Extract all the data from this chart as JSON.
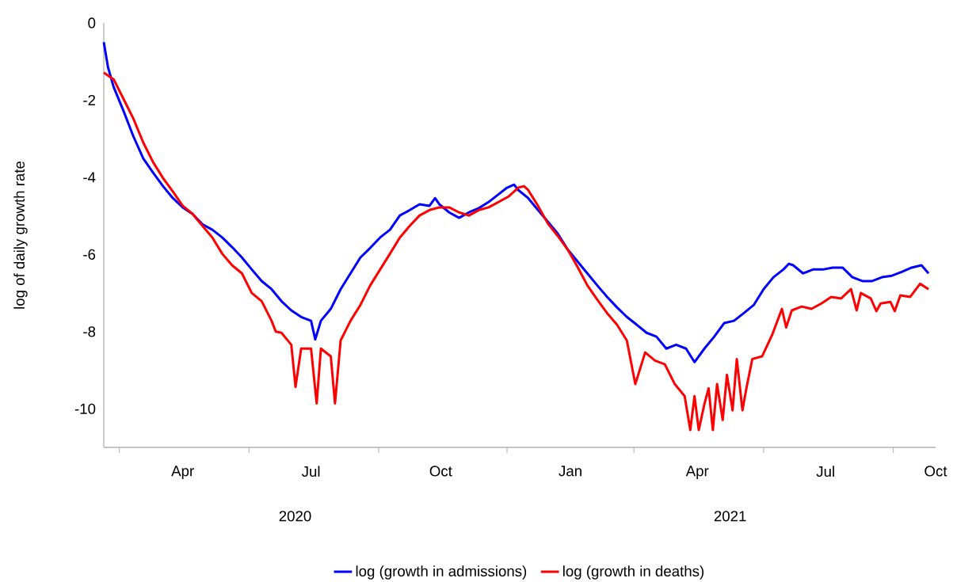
{
  "chart_data": {
    "type": "line",
    "ylabel": "log of daily growth rate",
    "xlim": [
      "2020-02-19",
      "2021-10-01"
    ],
    "xticks": [
      {
        "value": "2020-03-01",
        "label": null
      },
      {
        "value": "2020-04-15",
        "label": "Apr"
      },
      {
        "value": "2020-06-01",
        "label": null
      },
      {
        "value": "2020-07-15",
        "label": "Jul"
      },
      {
        "value": "2020-09-01",
        "label": null
      },
      {
        "value": "2020-10-15",
        "label": "Oct"
      },
      {
        "value": "2020-12-01",
        "label": null
      },
      {
        "value": "2021-01-15",
        "label": "Jan"
      },
      {
        "value": "2021-03-01",
        "label": null
      },
      {
        "value": "2021-04-15",
        "label": "Apr"
      },
      {
        "value": "2021-06-01",
        "label": null
      },
      {
        "value": "2021-07-15",
        "label": "Jul"
      },
      {
        "value": "2021-09-01",
        "label": null
      },
      {
        "value": "2021-10-01",
        "label": "Oct"
      }
    ],
    "ylim": [
      -11,
      0
    ],
    "yticks": [
      0,
      -2,
      -4,
      -6,
      -8,
      -10
    ],
    "annotations": [
      "2020",
      "2021"
    ],
    "legend": "bottom",
    "series": [
      {
        "name": "log (growth in admissions)",
        "color": "#0000ff",
        "x": [
          "2020-02-19",
          "2020-02-22",
          "2020-02-26",
          "2020-03-04",
          "2020-03-11",
          "2020-03-18",
          "2020-03-25",
          "2020-04-01",
          "2020-04-08",
          "2020-04-15",
          "2020-04-22",
          "2020-04-29",
          "2020-05-06",
          "2020-05-13",
          "2020-05-20",
          "2020-05-27",
          "2020-06-03",
          "2020-06-10",
          "2020-06-17",
          "2020-06-24",
          "2020-07-01",
          "2020-07-08",
          "2020-07-15",
          "2020-07-18",
          "2020-07-22",
          "2020-07-29",
          "2020-08-05",
          "2020-08-12",
          "2020-08-19",
          "2020-08-26",
          "2020-09-02",
          "2020-09-09",
          "2020-09-16",
          "2020-09-23",
          "2020-09-30",
          "2020-10-07",
          "2020-10-11",
          "2020-10-14",
          "2020-10-21",
          "2020-10-28",
          "2020-11-04",
          "2020-11-11",
          "2020-11-18",
          "2020-11-25",
          "2020-12-01",
          "2020-12-06",
          "2020-12-09",
          "2020-12-16",
          "2020-12-23",
          "2020-12-30",
          "2021-01-06",
          "2021-01-13",
          "2021-01-20",
          "2021-01-27",
          "2021-02-03",
          "2021-02-10",
          "2021-02-17",
          "2021-02-24",
          "2021-03-03",
          "2021-03-10",
          "2021-03-17",
          "2021-03-24",
          "2021-03-31",
          "2021-04-07",
          "2021-04-13",
          "2021-04-20",
          "2021-04-27",
          "2021-05-04",
          "2021-05-11",
          "2021-05-18",
          "2021-05-25",
          "2021-06-01",
          "2021-06-08",
          "2021-06-15",
          "2021-06-19",
          "2021-06-22",
          "2021-06-29",
          "2021-07-06",
          "2021-07-13",
          "2021-07-20",
          "2021-07-27",
          "2021-08-03",
          "2021-08-10",
          "2021-08-17",
          "2021-08-24",
          "2021-08-31",
          "2021-09-07",
          "2021-09-14",
          "2021-09-21",
          "2021-09-26"
        ],
        "values": [
          -0.5,
          -1.15,
          -1.66,
          -2.28,
          -2.94,
          -3.51,
          -3.88,
          -4.23,
          -4.54,
          -4.78,
          -4.95,
          -5.22,
          -5.36,
          -5.56,
          -5.81,
          -6.08,
          -6.39,
          -6.69,
          -6.9,
          -7.21,
          -7.45,
          -7.62,
          -7.72,
          -8.2,
          -7.72,
          -7.41,
          -6.9,
          -6.49,
          -6.08,
          -5.83,
          -5.56,
          -5.36,
          -4.99,
          -4.85,
          -4.7,
          -4.74,
          -4.54,
          -4.7,
          -4.91,
          -5.05,
          -4.91,
          -4.8,
          -4.64,
          -4.44,
          -4.27,
          -4.19,
          -4.33,
          -4.54,
          -4.85,
          -5.15,
          -5.46,
          -5.87,
          -6.18,
          -6.49,
          -6.8,
          -7.1,
          -7.37,
          -7.62,
          -7.82,
          -8.03,
          -8.13,
          -8.44,
          -8.34,
          -8.44,
          -8.79,
          -8.44,
          -8.13,
          -7.78,
          -7.72,
          -7.52,
          -7.31,
          -6.9,
          -6.59,
          -6.39,
          -6.24,
          -6.28,
          -6.49,
          -6.39,
          -6.39,
          -6.34,
          -6.34,
          -6.59,
          -6.69,
          -6.69,
          -6.59,
          -6.55,
          -6.45,
          -6.34,
          -6.28,
          -6.49
        ]
      },
      {
        "name": "log (growth in deaths)",
        "color": "#ff0000",
        "x": [
          "2020-02-19",
          "2020-02-26",
          "2020-03-04",
          "2020-03-11",
          "2020-03-18",
          "2020-03-25",
          "2020-04-01",
          "2020-04-08",
          "2020-04-15",
          "2020-04-22",
          "2020-04-29",
          "2020-05-06",
          "2020-05-13",
          "2020-05-20",
          "2020-05-27",
          "2020-06-03",
          "2020-06-10",
          "2020-06-17",
          "2020-06-20",
          "2020-06-24",
          "2020-07-01",
          "2020-07-04",
          "2020-07-08",
          "2020-07-15",
          "2020-07-19",
          "2020-07-22",
          "2020-07-29",
          "2020-08-01",
          "2020-08-05",
          "2020-08-12",
          "2020-08-19",
          "2020-08-26",
          "2020-09-02",
          "2020-09-09",
          "2020-09-16",
          "2020-09-23",
          "2020-09-30",
          "2020-10-07",
          "2020-10-14",
          "2020-10-21",
          "2020-10-28",
          "2020-11-04",
          "2020-11-11",
          "2020-11-18",
          "2020-11-25",
          "2020-12-02",
          "2020-12-09",
          "2020-12-13",
          "2020-12-16",
          "2020-12-23",
          "2020-12-30",
          "2021-01-06",
          "2021-01-13",
          "2021-01-20",
          "2021-01-27",
          "2021-02-03",
          "2021-02-10",
          "2021-02-17",
          "2021-02-24",
          "2021-03-02",
          "2021-03-09",
          "2021-03-16",
          "2021-03-23",
          "2021-03-30",
          "2021-04-06",
          "2021-04-10",
          "2021-04-13",
          "2021-04-16",
          "2021-04-20",
          "2021-04-23",
          "2021-04-26",
          "2021-04-29",
          "2021-05-03",
          "2021-05-06",
          "2021-05-10",
          "2021-05-13",
          "2021-05-17",
          "2021-05-20",
          "2021-05-24",
          "2021-05-31",
          "2021-06-07",
          "2021-06-14",
          "2021-06-17",
          "2021-06-21",
          "2021-06-28",
          "2021-07-05",
          "2021-07-12",
          "2021-07-19",
          "2021-07-26",
          "2021-08-02",
          "2021-08-06",
          "2021-08-09",
          "2021-08-16",
          "2021-08-20",
          "2021-08-23",
          "2021-08-30",
          "2021-09-02",
          "2021-09-06",
          "2021-09-13",
          "2021-09-20",
          "2021-09-26"
        ],
        "values": [
          -1.29,
          -1.46,
          -1.97,
          -2.48,
          -3.1,
          -3.61,
          -4.02,
          -4.37,
          -4.74,
          -4.95,
          -5.26,
          -5.56,
          -5.98,
          -6.28,
          -6.49,
          -7.0,
          -7.21,
          -7.72,
          -8.0,
          -8.03,
          -8.34,
          -9.43,
          -8.44,
          -8.44,
          -9.86,
          -8.44,
          -8.64,
          -9.86,
          -8.23,
          -7.72,
          -7.31,
          -6.8,
          -6.39,
          -5.98,
          -5.56,
          -5.26,
          -4.99,
          -4.85,
          -4.78,
          -4.78,
          -4.91,
          -4.99,
          -4.85,
          -4.78,
          -4.64,
          -4.5,
          -4.27,
          -4.23,
          -4.33,
          -4.74,
          -5.2,
          -5.52,
          -5.87,
          -6.32,
          -6.8,
          -7.17,
          -7.52,
          -7.82,
          -8.23,
          -9.36,
          -8.54,
          -8.75,
          -8.85,
          -9.36,
          -9.67,
          -10.55,
          -9.67,
          -10.55,
          -9.88,
          -9.47,
          -10.55,
          -9.36,
          -10.29,
          -9.12,
          -10.04,
          -8.71,
          -10.04,
          -9.43,
          -8.71,
          -8.64,
          -8.09,
          -7.41,
          -7.89,
          -7.45,
          -7.35,
          -7.41,
          -7.27,
          -7.1,
          -7.14,
          -6.9,
          -7.45,
          -7.0,
          -7.14,
          -7.47,
          -7.27,
          -7.23,
          -7.47,
          -7.06,
          -7.1,
          -6.76,
          -6.9
        ]
      }
    ]
  }
}
